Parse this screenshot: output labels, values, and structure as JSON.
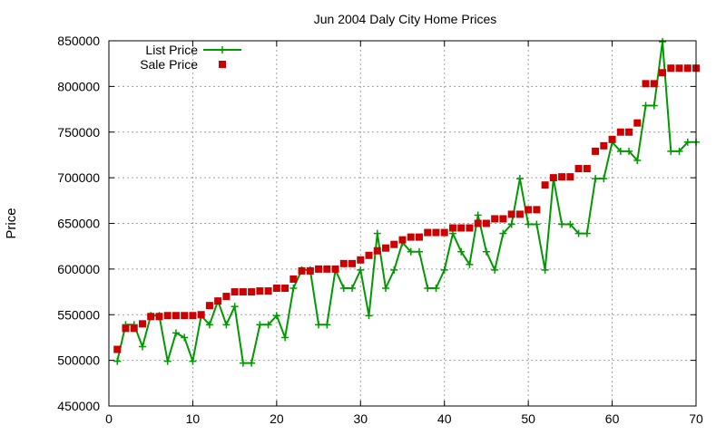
{
  "chart_data": {
    "type": "line",
    "title": "Jun 2004 Daly City Home Prices",
    "xlabel": "",
    "ylabel": "Price",
    "xlim": [
      0,
      70
    ],
    "ylim": [
      450000,
      850000
    ],
    "x_ticks": [
      0,
      10,
      20,
      30,
      40,
      50,
      60,
      70
    ],
    "y_ticks": [
      450000,
      500000,
      550000,
      600000,
      650000,
      700000,
      750000,
      800000,
      850000
    ],
    "grid": true,
    "legend_position": "top-left",
    "series": [
      {
        "name": "List Price",
        "style": "line-with-plus-markers",
        "color": "#009900",
        "points": [
          [
            1,
            499000
          ],
          [
            2,
            539000
          ],
          [
            3,
            539000
          ],
          [
            4,
            515000
          ],
          [
            5,
            549000
          ],
          [
            6,
            549000
          ],
          [
            7,
            499000
          ],
          [
            8,
            530000
          ],
          [
            9,
            525000
          ],
          [
            10,
            499000
          ],
          [
            11,
            549000
          ],
          [
            12,
            539000
          ],
          [
            13,
            565000
          ],
          [
            14,
            539000
          ],
          [
            15,
            559000
          ],
          [
            16,
            497000
          ],
          [
            17,
            497000
          ],
          [
            18,
            539000
          ],
          [
            19,
            539000
          ],
          [
            20,
            549000
          ],
          [
            21,
            525000
          ],
          [
            22,
            579000
          ],
          [
            23,
            599000
          ],
          [
            24,
            599000
          ],
          [
            25,
            539000
          ],
          [
            26,
            539000
          ],
          [
            27,
            599000
          ],
          [
            28,
            579000
          ],
          [
            29,
            579000
          ],
          [
            30,
            599000
          ],
          [
            31,
            549000
          ],
          [
            32,
            639000
          ],
          [
            33,
            579000
          ],
          [
            34,
            599000
          ],
          [
            35,
            629000
          ],
          [
            36,
            619000
          ],
          [
            37,
            619000
          ],
          [
            38,
            579000
          ],
          [
            39,
            579000
          ],
          [
            40,
            599000
          ],
          [
            41,
            639000
          ],
          [
            42,
            619000
          ],
          [
            43,
            605000
          ],
          [
            44,
            659000
          ],
          [
            45,
            619000
          ],
          [
            46,
            599000
          ],
          [
            47,
            639000
          ],
          [
            48,
            649000
          ],
          [
            49,
            699000
          ],
          [
            50,
            649000
          ],
          [
            51,
            649000
          ],
          [
            52,
            599000
          ],
          [
            53,
            699000
          ],
          [
            54,
            649000
          ],
          [
            55,
            649000
          ],
          [
            56,
            639000
          ],
          [
            57,
            639000
          ],
          [
            58,
            699000
          ],
          [
            59,
            699000
          ],
          [
            60,
            739000
          ],
          [
            61,
            729000
          ],
          [
            62,
            729000
          ],
          [
            63,
            719000
          ],
          [
            64,
            779000
          ],
          [
            65,
            779000
          ],
          [
            66,
            849000
          ],
          [
            67,
            729000
          ],
          [
            68,
            729000
          ],
          [
            69,
            739000
          ],
          [
            70,
            739000
          ]
        ]
      },
      {
        "name": "Sale Price",
        "style": "square-markers",
        "color": "#cc0000",
        "points": [
          [
            1,
            512000
          ],
          [
            2,
            535000
          ],
          [
            3,
            535000
          ],
          [
            4,
            540000
          ],
          [
            5,
            548000
          ],
          [
            6,
            548000
          ],
          [
            7,
            549000
          ],
          [
            8,
            549000
          ],
          [
            9,
            549000
          ],
          [
            10,
            549000
          ],
          [
            11,
            550000
          ],
          [
            12,
            560000
          ],
          [
            13,
            565000
          ],
          [
            14,
            570000
          ],
          [
            15,
            575000
          ],
          [
            16,
            575000
          ],
          [
            17,
            575000
          ],
          [
            18,
            576000
          ],
          [
            19,
            576000
          ],
          [
            20,
            579000
          ],
          [
            21,
            579000
          ],
          [
            22,
            589000
          ],
          [
            23,
            598000
          ],
          [
            24,
            598000
          ],
          [
            25,
            600000
          ],
          [
            26,
            600000
          ],
          [
            27,
            600000
          ],
          [
            28,
            606000
          ],
          [
            29,
            606000
          ],
          [
            30,
            610000
          ],
          [
            31,
            615000
          ],
          [
            32,
            620000
          ],
          [
            33,
            623000
          ],
          [
            34,
            627000
          ],
          [
            35,
            632000
          ],
          [
            36,
            635000
          ],
          [
            37,
            635000
          ],
          [
            38,
            640000
          ],
          [
            39,
            640000
          ],
          [
            40,
            640000
          ],
          [
            41,
            645000
          ],
          [
            42,
            645000
          ],
          [
            43,
            645000
          ],
          [
            44,
            650000
          ],
          [
            45,
            650000
          ],
          [
            46,
            655000
          ],
          [
            47,
            655000
          ],
          [
            48,
            660000
          ],
          [
            49,
            660000
          ],
          [
            50,
            665000
          ],
          [
            51,
            665000
          ],
          [
            52,
            692000
          ],
          [
            53,
            700000
          ],
          [
            54,
            701000
          ],
          [
            55,
            701000
          ],
          [
            56,
            710000
          ],
          [
            57,
            710000
          ],
          [
            58,
            729000
          ],
          [
            59,
            735000
          ],
          [
            60,
            742000
          ],
          [
            61,
            750000
          ],
          [
            62,
            750000
          ],
          [
            63,
            760000
          ],
          [
            64,
            803000
          ],
          [
            65,
            803000
          ],
          [
            66,
            815000
          ],
          [
            67,
            820000
          ],
          [
            68,
            820000
          ],
          [
            69,
            820000
          ],
          [
            70,
            820000
          ]
        ]
      }
    ]
  }
}
